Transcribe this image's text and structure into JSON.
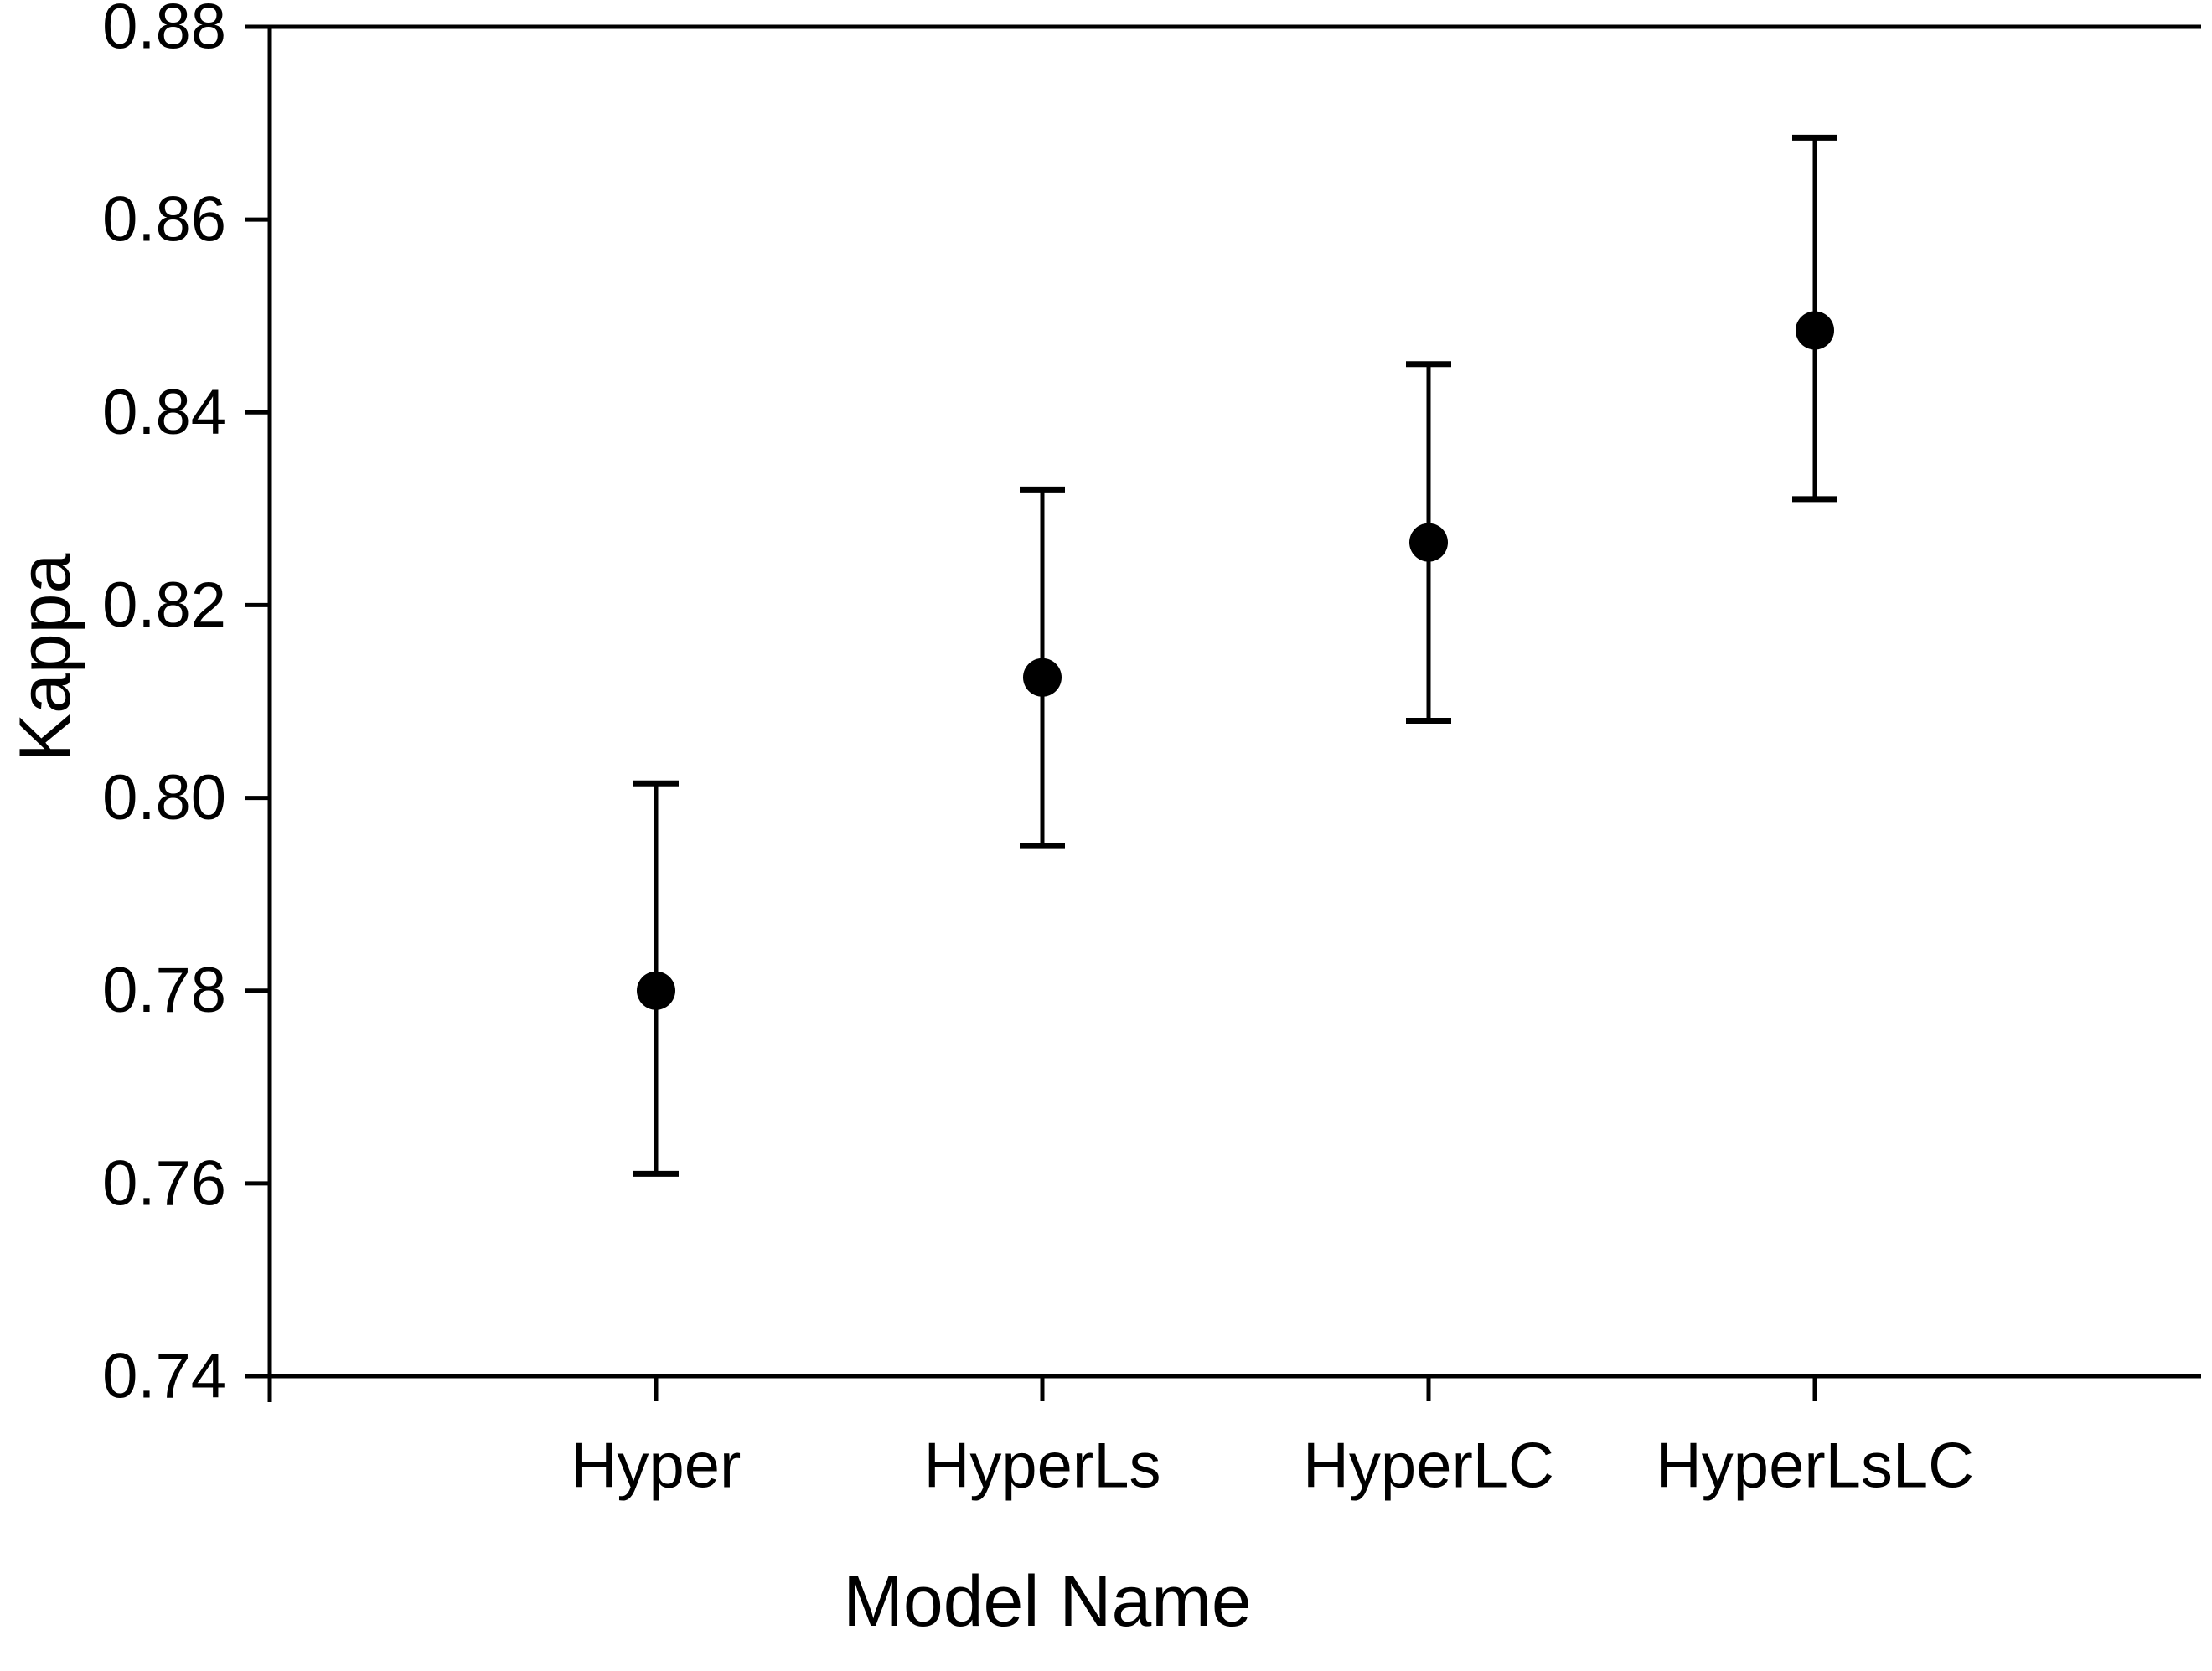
{
  "chart_data": {
    "type": "scatter",
    "title": "",
    "xlabel": "Model Name",
    "ylabel": "Kappa",
    "categories": [
      "Hyper",
      "HyperLs",
      "HyperLC",
      "HyperLsLC"
    ],
    "series": [
      {
        "name": "Kappa",
        "values": [
          0.78,
          0.8125,
          0.8265,
          0.8485
        ],
        "ci_low": [
          0.761,
          0.795,
          0.808,
          0.831
        ],
        "ci_high": [
          0.8015,
          0.832,
          0.845,
          0.8685
        ]
      }
    ],
    "ylim": [
      0.74,
      0.88
    ],
    "yticks": [
      0.88,
      0.86,
      0.84,
      0.82,
      0.8,
      0.78,
      0.76,
      0.74
    ],
    "ytick_format_decimals": 2,
    "grid": false,
    "legend": false,
    "marker": "filled-circle",
    "error_bars": true,
    "frame": "left-bottom-top"
  },
  "style": {
    "background": "#ffffff",
    "axis_color": "#000000",
    "marker_color": "#000000",
    "error_bar_color": "#000000"
  }
}
